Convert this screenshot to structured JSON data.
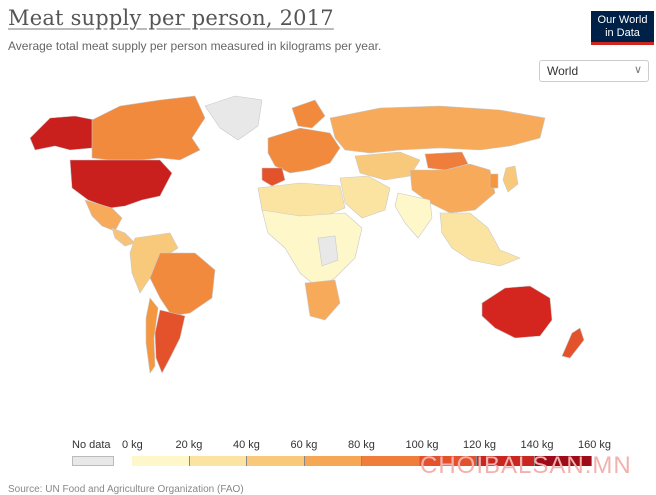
{
  "title": "Meat supply per person, 2017",
  "subtitle": "Average total meat supply per person measured in kilograms per year.",
  "logo": {
    "line1": "Our World",
    "line2": "in Data"
  },
  "region_select": {
    "value": "World",
    "icon": "chevron-down-icon"
  },
  "legend": {
    "no_data_label": "No data",
    "no_data_color": "#e8e8e8",
    "tick_labels": [
      "0 kg",
      "20 kg",
      "40 kg",
      "60 kg",
      "80 kg",
      "100 kg",
      "120 kg",
      "140 kg",
      "160 kg"
    ],
    "bin_colors": [
      "#fdf7c9",
      "#fbe4a1",
      "#f9c97b",
      "#f6a756",
      "#ef7d3c",
      "#e4522b",
      "#c8261f",
      "#9e0b19"
    ]
  },
  "map_colors": {
    "ocean": "#ffffff",
    "border": "#c9c9c9",
    "usa": "#c9201e",
    "canada": "#f28a3e",
    "alaska_region": "#c9201e",
    "greenland": "#e8e8e8",
    "mexico": "#f6aa5a",
    "central_america": "#f8c27a",
    "south_america_north": "#f9c97b",
    "brazil": "#f28a3e",
    "argentina": "#e4522b",
    "chile": "#f4973f",
    "europe_west": "#f28a3e",
    "spain": "#e4522b",
    "russia": "#f6aa5a",
    "central_asia": "#f9c97b",
    "mongolia": "#ef7d3c",
    "china": "#f6aa5a",
    "middle_east": "#fbe4a1",
    "africa_north": "#fbe4a1",
    "africa_central": "#fdf7c9",
    "africa_south": "#f6aa5a",
    "india": "#fdf7c9",
    "southeast_asia": "#fbe4a1",
    "australia": "#d4261f",
    "new_zealand": "#e4522b",
    "japan": "#f9c97b",
    "korea": "#f4973f",
    "no_data": "#e8e8e8"
  },
  "watermark": "CHOIBALSAN.MN",
  "footer": "Source: UN Food and Agriculture Organization (FAO)"
}
